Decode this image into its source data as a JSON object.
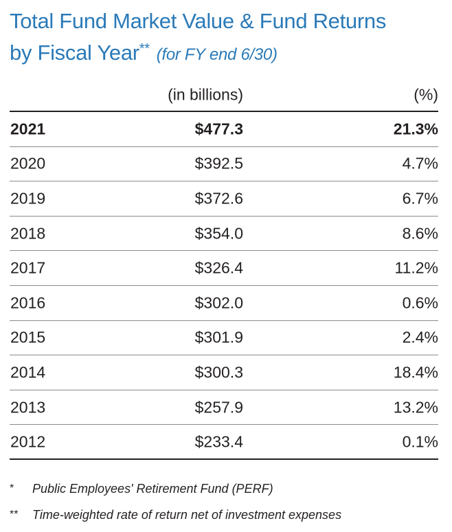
{
  "title": {
    "line1": "Total Fund Market Value & Fund Returns",
    "line2": "by Fiscal Year",
    "marker": "**",
    "subtitle": "(for FY end 6/30)"
  },
  "table": {
    "headers": {
      "year": "",
      "value": "(in billions)",
      "pct": "(%)"
    },
    "rows": [
      {
        "year": "2021",
        "value": "$477.3",
        "pct": "21.3%"
      },
      {
        "year": "2020",
        "value": "$392.5",
        "pct": "4.7%"
      },
      {
        "year": "2019",
        "value": "$372.6",
        "pct": "6.7%"
      },
      {
        "year": "2018",
        "value": "$354.0",
        "pct": "8.6%"
      },
      {
        "year": "2017",
        "value": "$326.4",
        "pct": "11.2%"
      },
      {
        "year": "2016",
        "value": "$302.0",
        "pct": "0.6%"
      },
      {
        "year": "2015",
        "value": "$301.9",
        "pct": "2.4%"
      },
      {
        "year": "2014",
        "value": "$300.3",
        "pct": "18.4%"
      },
      {
        "year": "2013",
        "value": "$257.9",
        "pct": "13.2%"
      },
      {
        "year": "2012",
        "value": "$233.4",
        "pct": "0.1%"
      }
    ]
  },
  "footnotes": [
    {
      "mark": "*",
      "text": "Public Employees' Retirement Fund (PERF)"
    },
    {
      "mark": "**",
      "text": "Time-weighted rate of return net of investment expenses"
    }
  ],
  "colors": {
    "title": "#2a7ab8",
    "text": "#231f20",
    "rule": "#8a8a8a"
  }
}
